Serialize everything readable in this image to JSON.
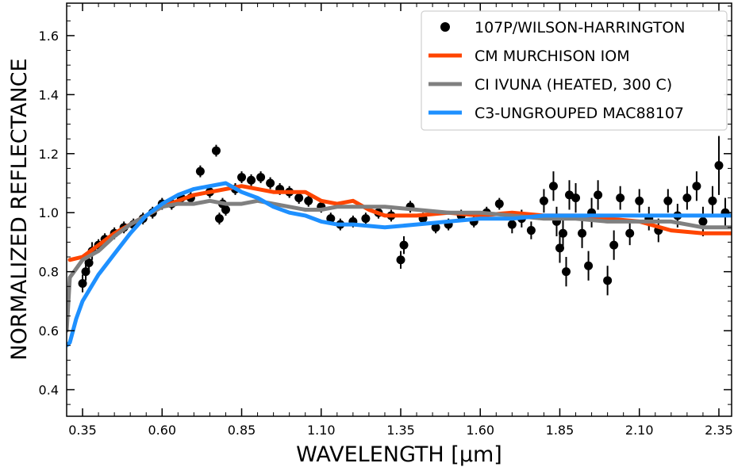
{
  "chart_data": {
    "type": "scatter",
    "xlabel": "WAVELENGTH [μm]",
    "ylabel": "NORMALIZED REFLECTANCE",
    "xlim": [
      0.3,
      2.39
    ],
    "ylim": [
      0.31,
      1.71
    ],
    "xticks": [
      0.35,
      0.6,
      0.85,
      1.1,
      1.35,
      1.6,
      1.85,
      2.1,
      2.35
    ],
    "xtick_labels": [
      "0.35",
      "0.60",
      "0.85",
      "1.10",
      "1.35",
      "1.60",
      "1.85",
      "2.10",
      "2.35"
    ],
    "yticks": [
      0.4,
      0.6,
      0.8,
      1.0,
      1.2,
      1.4,
      1.6
    ],
    "ytick_labels": [
      "0.4",
      "0.6",
      "0.8",
      "1.0",
      "1.2",
      "1.4",
      "1.6"
    ],
    "grid": false,
    "legend_position": "top-right",
    "series": [
      {
        "name": "107P/WILSON-HARRINGTON",
        "kind": "points-with-errorbars",
        "color": "#000000",
        "points": [
          {
            "x": 0.35,
            "y": 0.76,
            "err": 0.03
          },
          {
            "x": 0.36,
            "y": 0.8,
            "err": 0.03
          },
          {
            "x": 0.37,
            "y": 0.83,
            "err": 0.03
          },
          {
            "x": 0.38,
            "y": 0.87,
            "err": 0.03
          },
          {
            "x": 0.4,
            "y": 0.89,
            "err": 0.02
          },
          {
            "x": 0.42,
            "y": 0.91,
            "err": 0.02
          },
          {
            "x": 0.45,
            "y": 0.93,
            "err": 0.02
          },
          {
            "x": 0.48,
            "y": 0.95,
            "err": 0.02
          },
          {
            "x": 0.51,
            "y": 0.96,
            "err": 0.02
          },
          {
            "x": 0.54,
            "y": 0.98,
            "err": 0.02
          },
          {
            "x": 0.57,
            "y": 1.0,
            "err": 0.02
          },
          {
            "x": 0.6,
            "y": 1.03,
            "err": 0.02
          },
          {
            "x": 0.63,
            "y": 1.03,
            "err": 0.02
          },
          {
            "x": 0.66,
            "y": 1.05,
            "err": 0.02
          },
          {
            "x": 0.69,
            "y": 1.05,
            "err": 0.02
          },
          {
            "x": 0.72,
            "y": 1.14,
            "err": 0.02
          },
          {
            "x": 0.75,
            "y": 1.07,
            "err": 0.02
          },
          {
            "x": 0.77,
            "y": 1.21,
            "err": 0.02
          },
          {
            "x": 0.78,
            "y": 0.98,
            "err": 0.02
          },
          {
            "x": 0.79,
            "y": 1.03,
            "err": 0.02
          },
          {
            "x": 0.8,
            "y": 1.01,
            "err": 0.02
          },
          {
            "x": 0.83,
            "y": 1.08,
            "err": 0.02
          },
          {
            "x": 0.85,
            "y": 1.12,
            "err": 0.02
          },
          {
            "x": 0.88,
            "y": 1.11,
            "err": 0.02
          },
          {
            "x": 0.91,
            "y": 1.12,
            "err": 0.02
          },
          {
            "x": 0.94,
            "y": 1.1,
            "err": 0.02
          },
          {
            "x": 0.97,
            "y": 1.08,
            "err": 0.02
          },
          {
            "x": 1.0,
            "y": 1.07,
            "err": 0.02
          },
          {
            "x": 1.03,
            "y": 1.05,
            "err": 0.02
          },
          {
            "x": 1.06,
            "y": 1.04,
            "err": 0.02
          },
          {
            "x": 1.1,
            "y": 1.02,
            "err": 0.02
          },
          {
            "x": 1.13,
            "y": 0.98,
            "err": 0.02
          },
          {
            "x": 1.16,
            "y": 0.96,
            "err": 0.02
          },
          {
            "x": 1.2,
            "y": 0.97,
            "err": 0.02
          },
          {
            "x": 1.24,
            "y": 0.98,
            "err": 0.02
          },
          {
            "x": 1.28,
            "y": 1.0,
            "err": 0.02
          },
          {
            "x": 1.32,
            "y": 0.99,
            "err": 0.02
          },
          {
            "x": 1.35,
            "y": 0.84,
            "err": 0.03
          },
          {
            "x": 1.36,
            "y": 0.89,
            "err": 0.03
          },
          {
            "x": 1.38,
            "y": 1.02,
            "err": 0.02
          },
          {
            "x": 1.42,
            "y": 0.98,
            "err": 0.02
          },
          {
            "x": 1.46,
            "y": 0.95,
            "err": 0.02
          },
          {
            "x": 1.5,
            "y": 0.96,
            "err": 0.02
          },
          {
            "x": 1.54,
            "y": 0.99,
            "err": 0.02
          },
          {
            "x": 1.58,
            "y": 0.97,
            "err": 0.02
          },
          {
            "x": 1.62,
            "y": 1.0,
            "err": 0.02
          },
          {
            "x": 1.66,
            "y": 1.03,
            "err": 0.02
          },
          {
            "x": 1.7,
            "y": 0.96,
            "err": 0.03
          },
          {
            "x": 1.73,
            "y": 0.98,
            "err": 0.03
          },
          {
            "x": 1.76,
            "y": 0.94,
            "err": 0.03
          },
          {
            "x": 1.8,
            "y": 1.04,
            "err": 0.04
          },
          {
            "x": 1.83,
            "y": 1.09,
            "err": 0.05
          },
          {
            "x": 1.84,
            "y": 0.97,
            "err": 0.05
          },
          {
            "x": 1.85,
            "y": 0.88,
            "err": 0.05
          },
          {
            "x": 1.86,
            "y": 0.93,
            "err": 0.05
          },
          {
            "x": 1.87,
            "y": 0.8,
            "err": 0.05
          },
          {
            "x": 1.88,
            "y": 1.06,
            "err": 0.05
          },
          {
            "x": 1.9,
            "y": 1.05,
            "err": 0.05
          },
          {
            "x": 1.92,
            "y": 0.93,
            "err": 0.05
          },
          {
            "x": 1.94,
            "y": 0.82,
            "err": 0.05
          },
          {
            "x": 1.95,
            "y": 1.0,
            "err": 0.05
          },
          {
            "x": 1.97,
            "y": 1.06,
            "err": 0.05
          },
          {
            "x": 2.0,
            "y": 0.77,
            "err": 0.05
          },
          {
            "x": 2.02,
            "y": 0.89,
            "err": 0.05
          },
          {
            "x": 2.04,
            "y": 1.05,
            "err": 0.04
          },
          {
            "x": 2.07,
            "y": 0.93,
            "err": 0.04
          },
          {
            "x": 2.1,
            "y": 1.04,
            "err": 0.04
          },
          {
            "x": 2.13,
            "y": 0.98,
            "err": 0.04
          },
          {
            "x": 2.16,
            "y": 0.94,
            "err": 0.04
          },
          {
            "x": 2.19,
            "y": 1.04,
            "err": 0.04
          },
          {
            "x": 2.22,
            "y": 0.99,
            "err": 0.04
          },
          {
            "x": 2.25,
            "y": 1.05,
            "err": 0.04
          },
          {
            "x": 2.28,
            "y": 1.09,
            "err": 0.05
          },
          {
            "x": 2.3,
            "y": 0.97,
            "err": 0.05
          },
          {
            "x": 2.33,
            "y": 1.04,
            "err": 0.05
          },
          {
            "x": 2.35,
            "y": 1.16,
            "err": 0.1
          },
          {
            "x": 2.37,
            "y": 1.0,
            "err": 0.05
          }
        ]
      },
      {
        "name": "CM MURCHISON IOM",
        "kind": "line",
        "color": "#ff4500",
        "x": [
          0.31,
          0.35,
          0.4,
          0.45,
          0.5,
          0.55,
          0.6,
          0.65,
          0.7,
          0.75,
          0.8,
          0.85,
          0.9,
          0.95,
          1.0,
          1.05,
          1.1,
          1.15,
          1.2,
          1.25,
          1.3,
          1.35,
          1.4,
          1.5,
          1.6,
          1.7,
          1.8,
          1.9,
          2.0,
          2.1,
          2.2,
          2.3,
          2.39
        ],
        "y": [
          0.84,
          0.85,
          0.89,
          0.93,
          0.96,
          0.99,
          1.02,
          1.04,
          1.06,
          1.07,
          1.08,
          1.09,
          1.08,
          1.07,
          1.07,
          1.07,
          1.04,
          1.03,
          1.04,
          1.01,
          0.99,
          0.99,
          0.99,
          1.0,
          0.99,
          1.0,
          0.99,
          0.99,
          0.98,
          0.97,
          0.94,
          0.93,
          0.93
        ]
      },
      {
        "name": "CI IVUNA (HEATED, 300 C)",
        "kind": "line",
        "color": "#808080",
        "x": [
          0.3,
          0.31,
          0.33,
          0.35,
          0.4,
          0.45,
          0.5,
          0.55,
          0.6,
          0.65,
          0.7,
          0.75,
          0.8,
          0.85,
          0.9,
          0.95,
          1.0,
          1.05,
          1.1,
          1.15,
          1.2,
          1.25,
          1.3,
          1.4,
          1.5,
          1.6,
          1.7,
          1.8,
          1.9,
          2.0,
          2.1,
          2.2,
          2.3,
          2.39
        ],
        "y": [
          0.6,
          0.78,
          0.81,
          0.84,
          0.87,
          0.92,
          0.96,
          0.99,
          1.02,
          1.03,
          1.03,
          1.04,
          1.03,
          1.03,
          1.04,
          1.03,
          1.02,
          1.01,
          1.01,
          1.02,
          1.02,
          1.02,
          1.02,
          1.01,
          1.0,
          1.0,
          0.99,
          0.98,
          0.98,
          0.97,
          0.97,
          0.97,
          0.95,
          0.95
        ]
      },
      {
        "name": "C3-UNGROUPED MAC88107",
        "kind": "line",
        "color": "#1e90ff",
        "x": [
          0.3,
          0.31,
          0.33,
          0.35,
          0.4,
          0.45,
          0.5,
          0.55,
          0.6,
          0.65,
          0.7,
          0.75,
          0.8,
          0.85,
          0.9,
          0.95,
          1.0,
          1.05,
          1.1,
          1.15,
          1.2,
          1.3,
          1.4,
          1.5,
          1.6,
          1.7,
          1.8,
          1.9,
          2.0,
          2.1,
          2.2,
          2.3,
          2.39
        ],
        "y": [
          0.55,
          0.56,
          0.64,
          0.7,
          0.79,
          0.86,
          0.93,
          0.99,
          1.03,
          1.06,
          1.08,
          1.09,
          1.1,
          1.07,
          1.05,
          1.02,
          1.0,
          0.99,
          0.97,
          0.96,
          0.96,
          0.95,
          0.96,
          0.97,
          0.98,
          0.98,
          0.99,
          0.99,
          0.99,
          0.99,
          0.99,
          0.99,
          0.99
        ]
      }
    ]
  }
}
